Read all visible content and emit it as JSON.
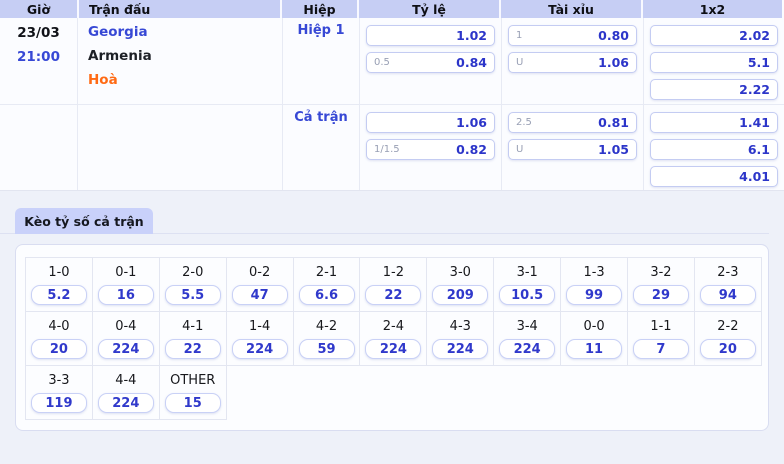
{
  "table": {
    "headers": {
      "time": "Giờ",
      "match": "Trận đấu",
      "period": "Hiệp",
      "rate": "Tỷ lệ",
      "over_under": "Tài xỉu",
      "one_x_two": "1x2"
    },
    "match": {
      "date": "23/03",
      "time": "21:00",
      "home": "Georgia",
      "away": "Armenia",
      "draw": "Hoà"
    },
    "groups": [
      {
        "period": "Hiệp 1",
        "rate": [
          {
            "label": "",
            "value": "1.02"
          },
          {
            "label": "0.5",
            "value": "0.84"
          }
        ],
        "over_under": [
          {
            "label": "1",
            "value": "0.80"
          },
          {
            "label": "U",
            "value": "1.06"
          }
        ],
        "one_x_two": [
          {
            "label": "",
            "value": "2.02"
          },
          {
            "label": "",
            "value": "5.1"
          },
          {
            "label": "",
            "value": "2.22"
          }
        ]
      },
      {
        "period": "Cả trận",
        "rate": [
          {
            "label": "",
            "value": "1.06"
          },
          {
            "label": "1/1.5",
            "value": "0.82"
          }
        ],
        "over_under": [
          {
            "label": "2.5",
            "value": "0.81"
          },
          {
            "label": "U",
            "value": "1.05"
          }
        ],
        "one_x_two": [
          {
            "label": "",
            "value": "1.41"
          },
          {
            "label": "",
            "value": "6.1"
          },
          {
            "label": "",
            "value": "4.01"
          }
        ]
      }
    ]
  },
  "score_section": {
    "tab_label": "Kèo tỷ số cả trận",
    "rows": [
      [
        {
          "score": "1-0",
          "odds": "5.2"
        },
        {
          "score": "0-1",
          "odds": "16"
        },
        {
          "score": "2-0",
          "odds": "5.5"
        },
        {
          "score": "0-2",
          "odds": "47"
        },
        {
          "score": "2-1",
          "odds": "6.6"
        },
        {
          "score": "1-2",
          "odds": "22"
        },
        {
          "score": "3-0",
          "odds": "209"
        },
        {
          "score": "3-1",
          "odds": "10.5"
        },
        {
          "score": "1-3",
          "odds": "99"
        },
        {
          "score": "3-2",
          "odds": "29"
        },
        {
          "score": "2-3",
          "odds": "94"
        }
      ],
      [
        {
          "score": "4-0",
          "odds": "20"
        },
        {
          "score": "0-4",
          "odds": "224"
        },
        {
          "score": "4-1",
          "odds": "22"
        },
        {
          "score": "1-4",
          "odds": "224"
        },
        {
          "score": "4-2",
          "odds": "59"
        },
        {
          "score": "2-4",
          "odds": "224"
        },
        {
          "score": "4-3",
          "odds": "224"
        },
        {
          "score": "3-4",
          "odds": "224"
        },
        {
          "score": "0-0",
          "odds": "11"
        },
        {
          "score": "1-1",
          "odds": "7"
        },
        {
          "score": "2-2",
          "odds": "20"
        }
      ],
      [
        {
          "score": "3-3",
          "odds": "119"
        },
        {
          "score": "4-4",
          "odds": "224"
        },
        {
          "score": "OTHER",
          "odds": "15"
        }
      ]
    ]
  },
  "colors": {
    "header_bg": "#c6cef4",
    "tab_bg": "#c9d1fa",
    "odds_blue": "#2c35c9",
    "link_blue": "#3748d5",
    "draw_orange": "#ff6a14",
    "page_bg": "#eef1f9"
  }
}
